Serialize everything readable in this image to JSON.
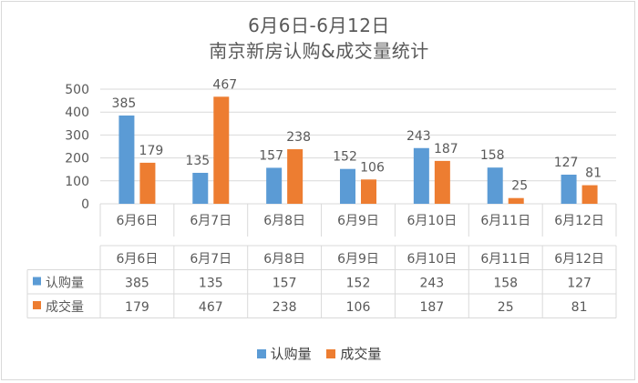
{
  "title_line1": "6月6日-6月12日",
  "title_line2": "南京新房认购&成交量统计",
  "colors": {
    "series1": "#5b9bd5",
    "series2": "#ed7d31",
    "grid": "#d9d9d9",
    "text": "#595959"
  },
  "chart_data": {
    "type": "bar",
    "categories": [
      "6月6日",
      "6月7日",
      "6月8日",
      "6月9日",
      "6月10日",
      "6月11日",
      "6月12日"
    ],
    "series": [
      {
        "name": "认购量",
        "values": [
          385,
          135,
          157,
          152,
          243,
          158,
          127
        ]
      },
      {
        "name": "成交量",
        "values": [
          179,
          467,
          238,
          106,
          187,
          25,
          81
        ]
      }
    ],
    "yticks": [
      0,
      100,
      200,
      300,
      400,
      500
    ],
    "ylim": [
      0,
      500
    ],
    "grid": true,
    "data_table": true,
    "legend_position": "bottom"
  }
}
